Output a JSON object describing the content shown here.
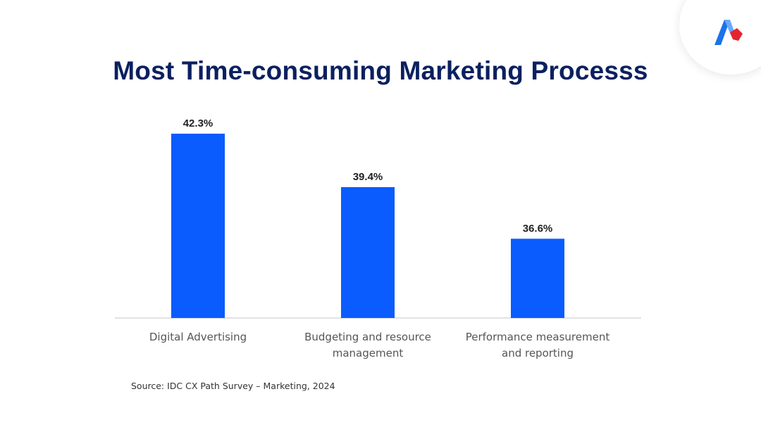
{
  "chart_data": {
    "type": "bar",
    "title": "Most Time-consuming Marketing Processs",
    "categories": [
      [
        "Digital Advertising"
      ],
      [
        "Budgeting and resource",
        "management"
      ],
      [
        "Performance measurement",
        "and reporting"
      ]
    ],
    "values": [
      42.3,
      39.4,
      36.6
    ],
    "value_labels": [
      "42.3%",
      "39.4%",
      "36.6%"
    ],
    "xlabel": "",
    "ylabel": "",
    "ylim": [
      32.3,
      43.3
    ],
    "grid": false,
    "legend": "none",
    "bar_color": "#0a5cff",
    "source": "Source: IDC CX Path Survey – Marketing, 2024"
  },
  "colors": {
    "title": "#0b2060",
    "bar": "#0a5cff",
    "axis": "#d9d9d9",
    "logo_blue": "#1a73e8",
    "logo_red": "#e3262e"
  },
  "logo": {
    "icon": "brand-a-logo-icon"
  }
}
